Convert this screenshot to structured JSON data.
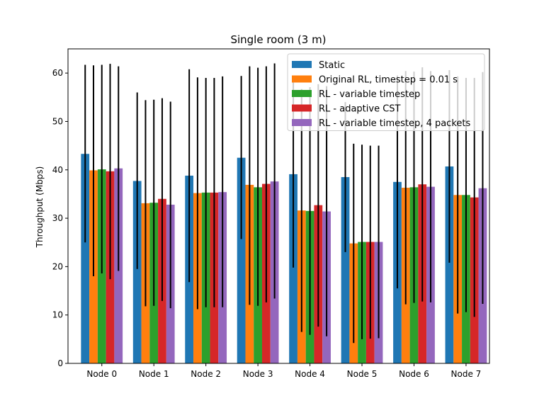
{
  "chart_data": {
    "type": "bar",
    "title": "Single room (3 m)",
    "xlabel": "",
    "ylabel": "Throughput (Mbps)",
    "ylim": [
      0,
      65
    ],
    "yticks": [
      0,
      10,
      20,
      30,
      40,
      50,
      60
    ],
    "grid": false,
    "legend_position": "top-right",
    "categories": [
      "Node 0",
      "Node 1",
      "Node 2",
      "Node 3",
      "Node 4",
      "Node 5",
      "Node 6",
      "Node 7"
    ],
    "series": [
      {
        "name": "Static",
        "color": "#1f77b4",
        "values": [
          43.3,
          37.7,
          38.8,
          42.5,
          39.1,
          38.5,
          37.5,
          40.7
        ],
        "err_low": [
          25.0,
          19.5,
          16.8,
          25.7,
          19.8,
          23.0,
          15.5,
          20.8
        ],
        "err_high": [
          61.7,
          56.0,
          60.8,
          59.4,
          58.4,
          54.0,
          59.5,
          60.6
        ]
      },
      {
        "name": "Original RL, timestep = 0.01 s",
        "color": "#ff7f0e",
        "values": [
          39.9,
          33.1,
          35.2,
          36.9,
          31.6,
          24.8,
          36.3,
          34.8
        ],
        "err_low": [
          18.0,
          11.8,
          11.2,
          12.1,
          6.5,
          4.2,
          12.2,
          10.3
        ],
        "err_high": [
          61.6,
          54.4,
          59.1,
          61.4,
          56.7,
          45.4,
          60.4,
          59.3
        ]
      },
      {
        "name": "RL - variable timestep",
        "color": "#2ca02c",
        "values": [
          40.1,
          33.2,
          35.3,
          36.4,
          31.5,
          25.1,
          36.4,
          34.8
        ],
        "err_low": [
          18.6,
          11.9,
          11.6,
          11.9,
          5.9,
          5.0,
          12.5,
          10.6
        ],
        "err_high": [
          61.7,
          54.5,
          59.0,
          61.1,
          57.1,
          45.2,
          60.3,
          59.0
        ]
      },
      {
        "name": "RL - adaptive CST",
        "color": "#d62728",
        "values": [
          39.7,
          34.0,
          35.3,
          37.1,
          32.7,
          25.1,
          37.0,
          34.3
        ],
        "err_low": [
          17.4,
          12.9,
          11.6,
          12.6,
          7.6,
          5.1,
          12.8,
          9.6
        ],
        "err_high": [
          61.9,
          54.8,
          59.0,
          61.4,
          57.7,
          45.0,
          61.2,
          59.0
        ]
      },
      {
        "name": "RL - variable timestep, 4 packets",
        "color": "#9467bd",
        "values": [
          40.3,
          32.8,
          35.4,
          37.6,
          31.4,
          25.1,
          36.5,
          36.2
        ],
        "err_low": [
          19.1,
          11.4,
          11.6,
          13.4,
          5.6,
          5.2,
          12.6,
          12.3
        ],
        "err_high": [
          61.4,
          54.1,
          59.3,
          62.0,
          57.3,
          45.0,
          60.4,
          60.2
        ]
      }
    ]
  }
}
